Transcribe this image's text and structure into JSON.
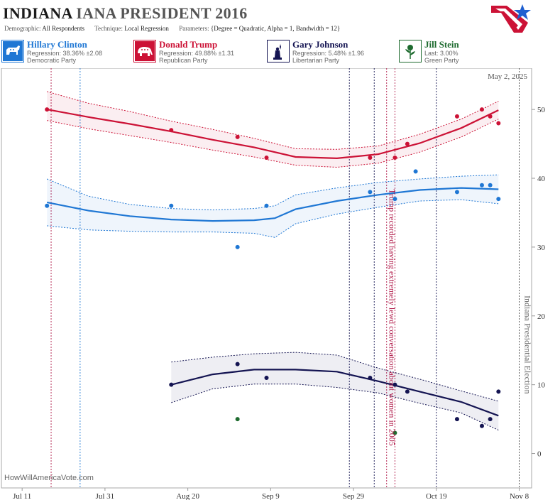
{
  "header": {
    "title_state": "INDIANA",
    "title_rest": "IANA PRESIDENT 2016",
    "demographic_label": "Demographic:",
    "demographic_value": "All Respondents",
    "technique_label": "Technique:",
    "technique_value": "Local Regression",
    "parameters_label": "Parameters:",
    "parameters_value": "{Degree = Quadratic, Alpha = 1, Bandwidth = 12}"
  },
  "candidates": [
    {
      "name": "Hillary Clinton",
      "stat": "Regression: 38.36% ±2.08",
      "party": "Democratic Party",
      "color": "#1f77d4",
      "icon": "donkey-icon"
    },
    {
      "name": "Donald Trump",
      "stat": "Regression: 49.88% ±1.31",
      "party": "Republican Party",
      "color": "#cc1236",
      "icon": "elephant-icon"
    },
    {
      "name": "Gary Johnson",
      "stat": "Regression: 5.48% ±1.96",
      "party": "Libertarian Party",
      "color": "#141452",
      "icon": "liberty-statue-icon"
    },
    {
      "name": "Jill Stein",
      "stat": "Last: 3.00%",
      "party": "Green Party",
      "color": "#1e6b2f",
      "icon": "rose-icon"
    }
  ],
  "footer": {
    "source": "HowWillAmericaVote.com"
  },
  "chart_data": {
    "type": "line",
    "date_label": "May 2, 2025",
    "x_ticks": [
      "Jul 11",
      "Jul 31",
      "Aug 20",
      "Sep 9",
      "Sep 29",
      "Oct 19",
      "Nov 8"
    ],
    "x_tick_dates": [
      "2016-07-11",
      "2016-07-31",
      "2016-08-20",
      "2016-09-09",
      "2016-09-29",
      "2016-10-19",
      "2016-11-08"
    ],
    "y_ticks": [
      0,
      10,
      20,
      30,
      40,
      50
    ],
    "x_range": [
      "2016-07-06",
      "2016-11-11"
    ],
    "y_range": [
      -5,
      56
    ],
    "annotations": [
      {
        "date": "2016-10-07",
        "text": "Trump recorded having extremely lewd conversation about women in 2005",
        "color": "#b01848"
      },
      {
        "date": "2016-11-08",
        "text": "Indiana Presidential Election",
        "color": "#666666"
      }
    ],
    "event_lines": [
      {
        "date": "2016-07-18",
        "color": "#b01848"
      },
      {
        "date": "2016-07-25",
        "color": "#1f77d4"
      },
      {
        "date": "2016-09-28",
        "color": "#141452"
      },
      {
        "date": "2016-10-04",
        "color": "#141452"
      },
      {
        "date": "2016-10-07",
        "color": "#b01848"
      },
      {
        "date": "2016-10-09",
        "color": "#b01848"
      },
      {
        "date": "2016-10-19",
        "color": "#141452"
      },
      {
        "date": "2016-11-08",
        "color": "#444444"
      }
    ],
    "series": [
      {
        "name": "Donald Trump",
        "color": "#cc1236",
        "points": [
          [
            "2016-07-17",
            50
          ],
          [
            "2016-08-16",
            47
          ],
          [
            "2016-09-01",
            46
          ],
          [
            "2016-09-08",
            43
          ],
          [
            "2016-10-03",
            43
          ],
          [
            "2016-10-09",
            43
          ],
          [
            "2016-10-12",
            45
          ],
          [
            "2016-10-24",
            49
          ],
          [
            "2016-10-30",
            50
          ],
          [
            "2016-11-01",
            49
          ],
          [
            "2016-11-03",
            48
          ]
        ],
        "trend": [
          [
            "2016-07-17",
            50
          ],
          [
            "2016-07-27",
            48.9
          ],
          [
            "2016-08-06",
            47.9
          ],
          [
            "2016-08-16",
            46.8
          ],
          [
            "2016-08-26",
            45.6
          ],
          [
            "2016-09-05",
            44.5
          ],
          [
            "2016-09-15",
            43.1
          ],
          [
            "2016-09-25",
            42.9
          ],
          [
            "2016-10-05",
            43.5
          ],
          [
            "2016-10-15",
            45.1
          ],
          [
            "2016-10-25",
            47.3
          ],
          [
            "2016-11-03",
            49.9
          ]
        ],
        "upper": [
          [
            "2016-07-17",
            52.6
          ],
          [
            "2016-07-27",
            50.9
          ],
          [
            "2016-08-06",
            49.7
          ],
          [
            "2016-08-16",
            48.3
          ],
          [
            "2016-08-26",
            47.1
          ],
          [
            "2016-09-05",
            45.8
          ],
          [
            "2016-09-15",
            44.3
          ],
          [
            "2016-09-25",
            44.2
          ],
          [
            "2016-10-05",
            44.7
          ],
          [
            "2016-10-15",
            46.4
          ],
          [
            "2016-10-25",
            48.6
          ],
          [
            "2016-11-03",
            51.2
          ]
        ],
        "lower": [
          [
            "2016-07-17",
            48.4
          ],
          [
            "2016-07-27",
            47.2
          ],
          [
            "2016-08-06",
            46.2
          ],
          [
            "2016-08-16",
            45.2
          ],
          [
            "2016-08-26",
            44.1
          ],
          [
            "2016-09-05",
            43.1
          ],
          [
            "2016-09-15",
            41.9
          ],
          [
            "2016-09-25",
            41.6
          ],
          [
            "2016-10-05",
            42.2
          ],
          [
            "2016-10-15",
            43.8
          ],
          [
            "2016-10-25",
            46.0
          ],
          [
            "2016-11-03",
            48.6
          ]
        ]
      },
      {
        "name": "Hillary Clinton",
        "color": "#1f77d4",
        "points": [
          [
            "2016-07-17",
            36
          ],
          [
            "2016-08-16",
            36
          ],
          [
            "2016-09-01",
            30
          ],
          [
            "2016-09-08",
            36
          ],
          [
            "2016-10-03",
            38
          ],
          [
            "2016-10-09",
            37
          ],
          [
            "2016-10-14",
            41
          ],
          [
            "2016-10-24",
            38
          ],
          [
            "2016-10-30",
            39
          ],
          [
            "2016-11-01",
            39
          ],
          [
            "2016-11-03",
            37
          ]
        ],
        "trend": [
          [
            "2016-07-17",
            36.5
          ],
          [
            "2016-07-27",
            35.3
          ],
          [
            "2016-08-06",
            34.5
          ],
          [
            "2016-08-16",
            34.0
          ],
          [
            "2016-08-26",
            33.8
          ],
          [
            "2016-09-05",
            33.9
          ],
          [
            "2016-09-10",
            34.2
          ],
          [
            "2016-09-15",
            35.5
          ],
          [
            "2016-09-25",
            36.7
          ],
          [
            "2016-10-05",
            37.6
          ],
          [
            "2016-10-15",
            38.3
          ],
          [
            "2016-10-25",
            38.6
          ],
          [
            "2016-11-03",
            38.4
          ]
        ],
        "upper": [
          [
            "2016-07-17",
            39.9
          ],
          [
            "2016-07-27",
            37.4
          ],
          [
            "2016-08-06",
            36.2
          ],
          [
            "2016-08-16",
            35.6
          ],
          [
            "2016-08-26",
            35.4
          ],
          [
            "2016-09-05",
            35.6
          ],
          [
            "2016-09-10",
            36.0
          ],
          [
            "2016-09-15",
            37.6
          ],
          [
            "2016-09-25",
            38.6
          ],
          [
            "2016-10-05",
            39.4
          ],
          [
            "2016-10-15",
            39.9
          ],
          [
            "2016-10-25",
            40.3
          ],
          [
            "2016-11-03",
            40.5
          ]
        ],
        "lower": [
          [
            "2016-07-17",
            33.1
          ],
          [
            "2016-07-27",
            32.5
          ],
          [
            "2016-08-06",
            32.3
          ],
          [
            "2016-08-16",
            32.2
          ],
          [
            "2016-08-26",
            32.2
          ],
          [
            "2016-09-05",
            32.0
          ],
          [
            "2016-09-10",
            31.4
          ],
          [
            "2016-09-15",
            33.4
          ],
          [
            "2016-09-25",
            34.8
          ],
          [
            "2016-10-05",
            35.8
          ],
          [
            "2016-10-15",
            36.7
          ],
          [
            "2016-10-25",
            36.9
          ],
          [
            "2016-11-03",
            36.3
          ]
        ]
      },
      {
        "name": "Gary Johnson",
        "color": "#141452",
        "points": [
          [
            "2016-08-16",
            10
          ],
          [
            "2016-09-01",
            13
          ],
          [
            "2016-09-08",
            11
          ],
          [
            "2016-10-03",
            11
          ],
          [
            "2016-10-09",
            10
          ],
          [
            "2016-10-12",
            9
          ],
          [
            "2016-10-24",
            5
          ],
          [
            "2016-10-30",
            4
          ],
          [
            "2016-11-01",
            5
          ],
          [
            "2016-11-03",
            9
          ]
        ],
        "trend": [
          [
            "2016-08-16",
            10.0
          ],
          [
            "2016-08-26",
            11.5
          ],
          [
            "2016-09-05",
            12.2
          ],
          [
            "2016-09-15",
            12.2
          ],
          [
            "2016-09-25",
            11.9
          ],
          [
            "2016-10-05",
            10.5
          ],
          [
            "2016-10-15",
            9.0
          ],
          [
            "2016-10-25",
            7.5
          ],
          [
            "2016-11-03",
            5.5
          ]
        ],
        "upper": [
          [
            "2016-08-16",
            13.3
          ],
          [
            "2016-08-26",
            14.0
          ],
          [
            "2016-09-05",
            14.5
          ],
          [
            "2016-09-15",
            14.7
          ],
          [
            "2016-09-25",
            14.3
          ],
          [
            "2016-10-05",
            12.4
          ],
          [
            "2016-10-15",
            10.8
          ],
          [
            "2016-10-25",
            9.1
          ],
          [
            "2016-11-03",
            7.6
          ]
        ],
        "lower": [
          [
            "2016-08-16",
            7.4
          ],
          [
            "2016-08-26",
            9.4
          ],
          [
            "2016-09-05",
            10.1
          ],
          [
            "2016-09-15",
            10.1
          ],
          [
            "2016-09-25",
            9.6
          ],
          [
            "2016-10-05",
            8.8
          ],
          [
            "2016-10-15",
            7.3
          ],
          [
            "2016-10-25",
            5.9
          ],
          [
            "2016-11-03",
            3.4
          ]
        ]
      },
      {
        "name": "Jill Stein",
        "color": "#1e6b2f",
        "points": [
          [
            "2016-09-01",
            5
          ],
          [
            "2016-10-09",
            3
          ]
        ]
      }
    ]
  }
}
